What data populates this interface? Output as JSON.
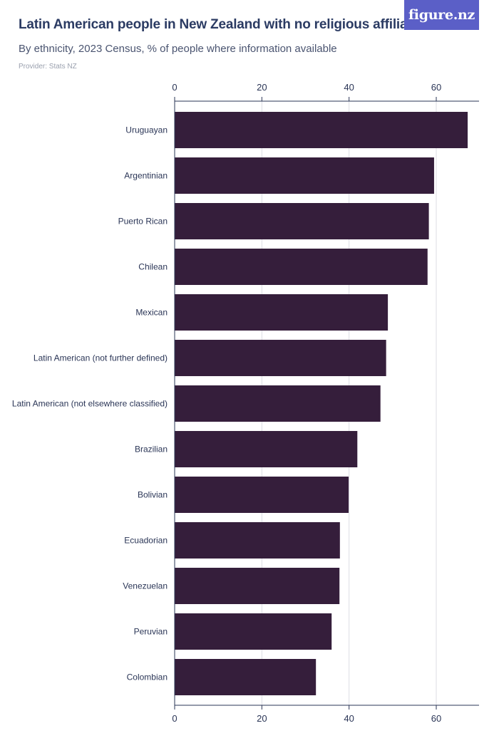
{
  "header": {
    "title": "Latin American people in New Zealand with no religious affiliation",
    "subtitle": "By ethnicity, 2023 Census, % of people where information available",
    "provider": "Provider: Stats NZ",
    "logo_text": "figure.nz"
  },
  "colors": {
    "bar": "#351e3b",
    "grid": "#dcdde3",
    "axis": "#2a3556",
    "logo_bg": "#5b5fc7"
  },
  "chart_data": {
    "type": "bar",
    "orientation": "horizontal",
    "categories": [
      "Uruguayan",
      "Argentinian",
      "Puerto Rican",
      "Chilean",
      "Mexican",
      "Latin American (not further defined)",
      "Latin American (not elsewhere classified)",
      "Brazilian",
      "Bolivian",
      "Ecuadorian",
      "Venezuelan",
      "Peruvian",
      "Colombian"
    ],
    "values": [
      67.2,
      59.5,
      58.3,
      58.0,
      48.9,
      48.5,
      47.2,
      41.9,
      39.9,
      37.9,
      37.8,
      36.0,
      32.4
    ],
    "xticks": [
      0,
      20,
      40,
      60
    ],
    "xlim": [
      0,
      70
    ],
    "grid": true
  }
}
